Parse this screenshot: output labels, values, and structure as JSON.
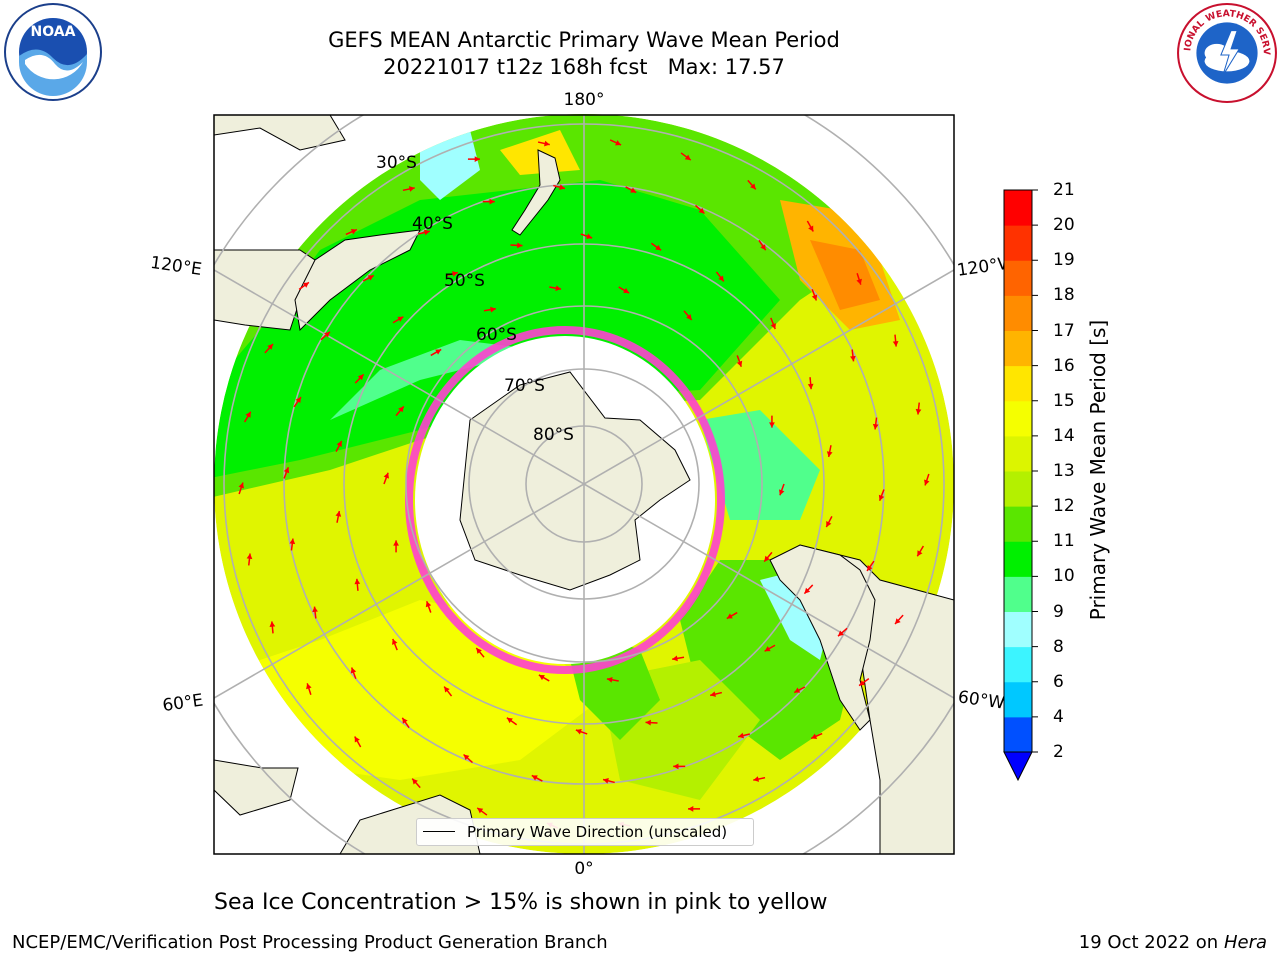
{
  "title": {
    "line1": "GEFS MEAN Antarctic Primary Wave Mean Period",
    "line2": "20221017 t12z 168h fcst   Max: 17.57"
  },
  "logos": {
    "left": "noaa-logo",
    "left_text": "NOAA",
    "right": "nws-logo",
    "right_text": "NATIONAL WEATHER SERVICE"
  },
  "map": {
    "projection": "south-polar-stereographic",
    "longitude_labels": {
      "top": "180°",
      "bottom": "0°",
      "upper_left": "120°E",
      "upper_right": "120°W",
      "lower_left": "60°E",
      "lower_right": "60°W"
    },
    "latitude_labels": [
      "30°S",
      "40°S",
      "50°S",
      "60°S",
      "70°S",
      "80°S"
    ],
    "legend_text": "Primary Wave Direction (unscaled)"
  },
  "colorbar": {
    "label": "Primary Wave Mean Period [s]",
    "ticks": [
      "2",
      "4",
      "6",
      "8",
      "9",
      "10",
      "11",
      "12",
      "13",
      "14",
      "15",
      "16",
      "17",
      "18",
      "19",
      "20",
      "21"
    ],
    "colors": [
      "#0050ff",
      "#00c8ff",
      "#3cf4ff",
      "#a0ffff",
      "#50ff8c",
      "#00f000",
      "#5ae600",
      "#b4f000",
      "#dcf500",
      "#f5ff00",
      "#ffe600",
      "#ffb400",
      "#ff8c00",
      "#ff6400",
      "#ff3200",
      "#ff0000"
    ],
    "extend_color": "#0000ff"
  },
  "note": "Sea Ice Concentration > 15% is shown in pink to yellow",
  "footer": {
    "left": "NCEP/EMC/Verification Post Processing Product Generation Branch",
    "right_prefix": "19 Oct 2022 on ",
    "right_machine": "Hera"
  }
}
